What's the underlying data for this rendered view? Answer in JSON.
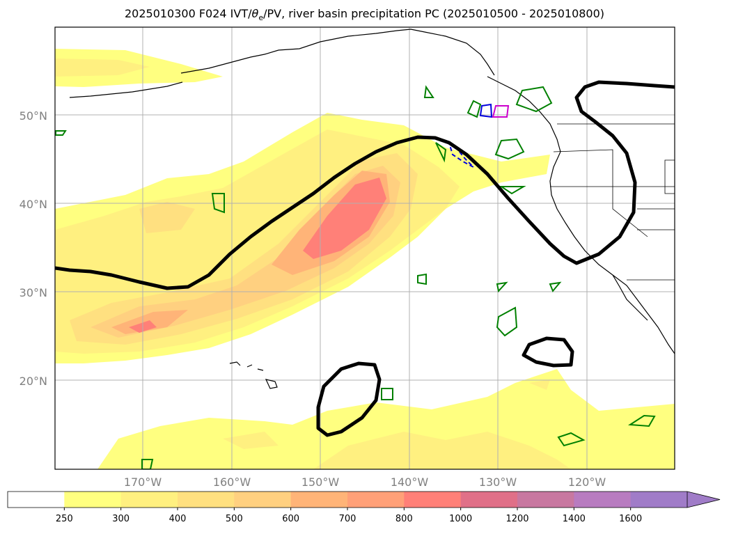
{
  "title": {
    "prefix": "2025010300 F024 IVT/",
    "theta": "θ",
    "theta_sub": "e",
    "suffix": "/PV, river basin precipitation PC (2025010500 - 2025010800)"
  },
  "axes": {
    "lat_labels": [
      "50°N",
      "40°N",
      "30°N",
      "20°N"
    ],
    "lon_labels": [
      "170°W",
      "160°W",
      "150°W",
      "140°W",
      "130°W",
      "120°W"
    ]
  },
  "colorbar": {
    "tick_labels": [
      "250",
      "300",
      "400",
      "500",
      "600",
      "700",
      "800",
      "1000",
      "1200",
      "1400",
      "1600"
    ],
    "colors": [
      "#ffffff",
      "#ffff80",
      "#fff080",
      "#ffe080",
      "#ffd080",
      "#ffb478",
      "#ffa078",
      "#ff8078",
      "#e07088",
      "#c878a0",
      "#b87cc0",
      "#a07cc8"
    ],
    "extend": "max"
  },
  "colors": {
    "land_outline": "#000000",
    "pv_contour": "#000000",
    "green_contours": "#008000",
    "blue_contours": "#0000dd",
    "magenta_contours": "#cc00cc",
    "gridlines": "#b0b0b0"
  }
}
